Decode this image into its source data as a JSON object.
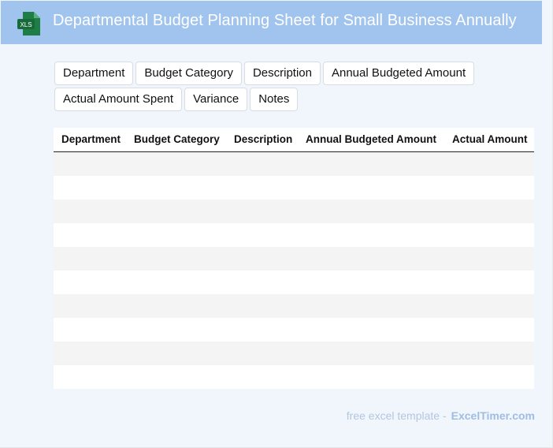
{
  "header": {
    "icon_label": "XLS",
    "title": "Departmental Budget Planning Sheet for Small Business Annually"
  },
  "fields": [
    "Department",
    "Budget Category",
    "Description",
    "Annual Budgeted Amount",
    "Actual Amount Spent",
    "Variance",
    "Notes"
  ],
  "table": {
    "columns": [
      "Department",
      "Budget Category",
      "Description",
      "Annual Budgeted Amount",
      "Actual Amount"
    ],
    "row_count": 10
  },
  "footer": {
    "prefix": "free excel template -",
    "brand": "ExcelTimer.com"
  },
  "colors": {
    "header_bg": "#a0c4ee",
    "page_bg": "#f1f6fd",
    "icon_green": "#1e7e46",
    "stripe": "#f4f4f4"
  }
}
